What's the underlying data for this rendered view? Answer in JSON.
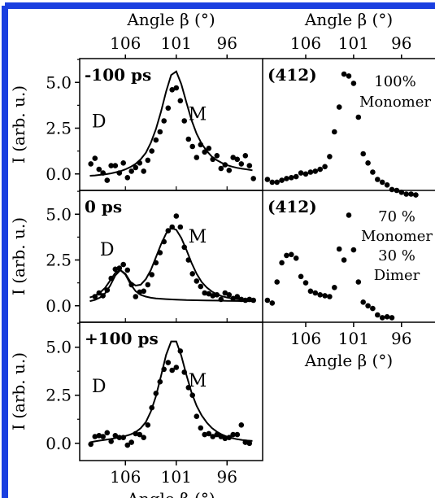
{
  "chart_data": [
    {
      "type": "scatter",
      "panel_label": "-100 ps",
      "xlabel_top": "Angle β (°)",
      "ylabel": "I (arb. u.)",
      "xlim": [
        110.5,
        92.5
      ],
      "ylim": [
        -0.9,
        6.3
      ],
      "xticks": [
        106,
        101,
        96
      ],
      "yticks": [
        {
          "value": 0.0,
          "label": "0.0"
        },
        {
          "value": 2.5,
          "label": "2.5"
        },
        {
          "value": 5.0,
          "label": "5.0"
        }
      ],
      "peak_labels": [
        {
          "text": "D",
          "x": 108.6,
          "y": 2.55
        },
        {
          "text": "M",
          "x": 98.9,
          "y": 2.95
        }
      ],
      "series": [
        {
          "kind": "points",
          "x": [
            109.4,
            109,
            108.6,
            108.2,
            107.8,
            107.4,
            107,
            106.6,
            106.2,
            105.8,
            105.4,
            105,
            104.6,
            104.2,
            103.8,
            103.4,
            103,
            102.6,
            102.2,
            101.8,
            101.4,
            101,
            100.6,
            100.2,
            99.8,
            99.4,
            99,
            98.6,
            98.2,
            97.8,
            97.4,
            97,
            96.6,
            96.2,
            95.8,
            95.4,
            95,
            94.6,
            94.2,
            93.8,
            93.4
          ],
          "y": [
            0.55,
            0.85,
            0.25,
            0.05,
            -0.35,
            0.45,
            0.45,
            0.05,
            0.6,
            -0.2,
            0.15,
            0.35,
            0.6,
            0.15,
            0.75,
            1.25,
            1.85,
            2.3,
            2.9,
            3.6,
            4.6,
            4.7,
            4.0,
            2.9,
            1.9,
            1.5,
            0.9,
            1.6,
            1.2,
            1.4,
            0.8,
            1.0,
            0.3,
            0.5,
            0.2,
            0.9,
            0.8,
            0.55,
            1.0,
            0.45,
            -0.25
          ]
        },
        {
          "kind": "line",
          "x": [
            109.5,
            109,
            108.5,
            108,
            107.5,
            107,
            106.5,
            106,
            105.5,
            105,
            104.5,
            104,
            103.5,
            103,
            102.5,
            102,
            101.5,
            101,
            100.5,
            100,
            99.5,
            99,
            98.5,
            98,
            97.5,
            97,
            96.5,
            96,
            95.5,
            95,
            94.5,
            94,
            93.5
          ],
          "y": [
            -0.1,
            -0.08,
            -0.05,
            -0.02,
            0.02,
            0.08,
            0.15,
            0.25,
            0.38,
            0.55,
            0.8,
            1.15,
            1.7,
            2.45,
            3.4,
            4.5,
            5.4,
            5.6,
            4.9,
            3.9,
            2.95,
            2.2,
            1.65,
            1.25,
            0.95,
            0.75,
            0.6,
            0.48,
            0.4,
            0.33,
            0.28,
            0.24,
            0.2
          ]
        }
      ]
    },
    {
      "type": "scatter",
      "panel_label": "0 ps",
      "ylabel": "I (arb. u.)",
      "xlim": [
        110.5,
        92.5
      ],
      "ylim": [
        -0.9,
        6.3
      ],
      "xticks": [
        106,
        101,
        96
      ],
      "yticks": [
        {
          "value": 0.0,
          "label": "0.0"
        },
        {
          "value": 2.5,
          "label": "2.5"
        },
        {
          "value": 5.0,
          "label": "5.0"
        }
      ],
      "peak_labels": [
        {
          "text": "D",
          "x": 107.8,
          "y": 2.75
        },
        {
          "text": "M",
          "x": 98.9,
          "y": 3.45
        }
      ],
      "series": [
        {
          "kind": "points",
          "x": [
            109,
            108.6,
            108.2,
            107.8,
            107.4,
            107,
            106.6,
            106.2,
            105.8,
            105.4,
            105,
            104.6,
            104.2,
            103.8,
            103.4,
            103,
            102.6,
            102.2,
            101.8,
            101.4,
            101,
            100.6,
            100.2,
            99.8,
            99.4,
            99,
            98.6,
            98.2,
            97.8,
            97.4,
            97,
            96.6,
            96.2,
            95.8,
            95.4,
            95,
            94.6,
            94.2,
            93.8,
            93.4
          ],
          "y": [
            0.5,
            0.7,
            0.55,
            0.85,
            1.5,
            2.0,
            2.05,
            2.25,
            1.95,
            1.15,
            0.5,
            0.75,
            0.8,
            1.15,
            1.7,
            2.35,
            2.9,
            3.5,
            4.1,
            4.3,
            4.9,
            4.3,
            3.2,
            2.5,
            1.75,
            1.35,
            1.05,
            0.7,
            0.65,
            0.55,
            0.6,
            0.35,
            0.7,
            0.6,
            0.4,
            0.5,
            0.35,
            0.3,
            0.35,
            0.3
          ]
        },
        {
          "kind": "line",
          "x": [
            109.5,
            109,
            108.5,
            108,
            107.5,
            107,
            106.5,
            106,
            105.5,
            105,
            104.5,
            104,
            103.5,
            103,
            102.5,
            102,
            101.5,
            101,
            100.5,
            100,
            99.5,
            99,
            98.5,
            98,
            97.5,
            97,
            96.5,
            96,
            95.5,
            95,
            94.5,
            94,
            93.5
          ],
          "y": [
            0.45,
            0.55,
            0.72,
            0.98,
            1.38,
            1.8,
            1.95,
            1.75,
            1.3,
            1.1,
            1.15,
            1.45,
            1.95,
            2.65,
            3.35,
            3.95,
            4.25,
            4.15,
            3.7,
            3.05,
            2.35,
            1.75,
            1.3,
            1.0,
            0.78,
            0.63,
            0.52,
            0.45,
            0.4,
            0.36,
            0.33,
            0.31,
            0.3
          ]
        },
        {
          "kind": "line",
          "x": [
            109.5,
            109,
            108.5,
            108,
            107.5,
            107,
            106.5,
            106,
            105.5,
            105,
            104.5,
            104,
            103.5,
            103,
            102,
            101,
            100,
            99,
            98,
            97,
            96,
            95,
            94,
            93.5
          ],
          "y": [
            0.25,
            0.32,
            0.45,
            0.68,
            1.1,
            1.65,
            1.95,
            1.7,
            1.18,
            0.8,
            0.6,
            0.5,
            0.44,
            0.4,
            0.36,
            0.33,
            0.31,
            0.3,
            0.29,
            0.28,
            0.27,
            0.26,
            0.25,
            0.25
          ]
        }
      ]
    },
    {
      "type": "scatter",
      "panel_label": "+100 ps",
      "xlabel": "Angle β (°)",
      "ylabel": "I (arb. u.)",
      "xlim": [
        110.5,
        92.5
      ],
      "ylim": [
        -0.9,
        6.3
      ],
      "xticks": [
        106,
        101,
        96
      ],
      "yticks": [
        {
          "value": 0.0,
          "label": "0.0"
        },
        {
          "value": 2.5,
          "label": "2.5"
        },
        {
          "value": 5.0,
          "label": "5.0"
        }
      ],
      "peak_labels": [
        {
          "text": "D",
          "x": 108.6,
          "y": 2.65
        },
        {
          "text": "M",
          "x": 98.9,
          "y": 2.95
        }
      ],
      "series": [
        {
          "kind": "points",
          "x": [
            109.4,
            109,
            108.6,
            108.2,
            107.8,
            107.4,
            107,
            106.6,
            106.2,
            105.8,
            105.4,
            105,
            104.6,
            104.2,
            103.8,
            103.4,
            103,
            102.6,
            102.2,
            101.8,
            101.4,
            101,
            100.6,
            100.2,
            99.8,
            99.4,
            99,
            98.6,
            98.2,
            97.8,
            97.4,
            97,
            96.6,
            96.2,
            95.8,
            95.4,
            95,
            94.6,
            94.2,
            93.8
          ],
          "y": [
            -0.05,
            0.35,
            0.4,
            0.35,
            0.55,
            0.1,
            0.4,
            0.3,
            0.3,
            -0.1,
            0.05,
            0.5,
            0.45,
            0.3,
            0.95,
            1.85,
            2.6,
            3.2,
            3.85,
            4.2,
            3.8,
            3.95,
            4.8,
            3.7,
            2.9,
            2.5,
            1.4,
            0.8,
            0.45,
            0.5,
            0.35,
            0.45,
            0.35,
            0.25,
            0.3,
            0.45,
            0.45,
            0.95,
            0.05,
            0.0
          ]
        },
        {
          "kind": "line",
          "x": [
            109.5,
            109,
            108.5,
            108,
            107.5,
            107,
            106.5,
            106,
            105.5,
            105,
            104.5,
            104,
            103.5,
            103,
            102.5,
            102,
            101.5,
            101,
            100.5,
            100,
            99.5,
            99,
            98.5,
            98,
            97.5,
            97,
            96.5,
            96,
            95.5,
            95,
            94.5,
            94,
            93.5
          ],
          "y": [
            0.05,
            0.1,
            0.14,
            0.18,
            0.22,
            0.27,
            0.32,
            0.38,
            0.46,
            0.58,
            0.78,
            1.1,
            1.65,
            2.45,
            3.5,
            4.6,
            5.3,
            5.3,
            4.55,
            3.55,
            2.65,
            1.95,
            1.45,
            1.08,
            0.8,
            0.6,
            0.45,
            0.34,
            0.27,
            0.21,
            0.17,
            0.14,
            0.12
          ]
        }
      ]
    },
    {
      "type": "scatter",
      "panel_label": "(412)",
      "xlabel_top": "Angle β (°)",
      "annotation": "100%\nMonomer",
      "xlim": [
        110.5,
        92.5
      ],
      "ylim": [
        -0.9,
        6.3
      ],
      "xticks": [
        106,
        101,
        96
      ],
      "series": [
        {
          "kind": "points",
          "x": [
            110,
            109.5,
            109,
            108.5,
            108,
            107.5,
            107,
            106.5,
            106,
            105.5,
            105,
            104.5,
            104,
            103.5,
            103,
            102.5,
            102,
            101.5,
            101,
            100.5,
            100,
            99.5,
            99,
            98.5,
            98,
            97.5,
            97,
            96.5,
            96,
            95.5,
            95,
            94.5
          ],
          "y": [
            -0.3,
            -0.45,
            -0.45,
            -0.35,
            -0.25,
            -0.2,
            -0.15,
            0.05,
            0.0,
            0.1,
            0.15,
            0.25,
            0.4,
            0.95,
            2.3,
            3.65,
            5.45,
            5.35,
            4.95,
            3.1,
            1.1,
            0.6,
            0.1,
            -0.3,
            -0.45,
            -0.6,
            -0.85,
            -0.9,
            -1.0,
            -1.1,
            -1.1,
            -1.15
          ]
        }
      ]
    },
    {
      "type": "scatter",
      "panel_label": "(412)",
      "xlabel": "Angle β (°)",
      "annotation": "70 %\nMonomer\n30 %\nDimer",
      "xlim": [
        110.5,
        92.5
      ],
      "ylim": [
        -0.9,
        6.3
      ],
      "xticks": [
        106,
        101,
        96
      ],
      "series": [
        {
          "kind": "points",
          "x": [
            110,
            109.5,
            109,
            108.5,
            108,
            107.5,
            107,
            106.5,
            106,
            105.5,
            105,
            104.5,
            104,
            103.5,
            103,
            102.5,
            102,
            101.5,
            101,
            100.5,
            100,
            99.5,
            99,
            98.5,
            98,
            97.5,
            97
          ],
          "y": [
            0.3,
            0.15,
            1.3,
            2.35,
            2.75,
            2.8,
            2.6,
            1.6,
            1.25,
            0.8,
            0.7,
            0.6,
            0.55,
            0.5,
            1.0,
            3.1,
            2.5,
            4.95,
            3.05,
            1.3,
            0.2,
            0.0,
            -0.15,
            -0.5,
            -0.65,
            -0.6,
            -0.65
          ]
        }
      ]
    }
  ]
}
